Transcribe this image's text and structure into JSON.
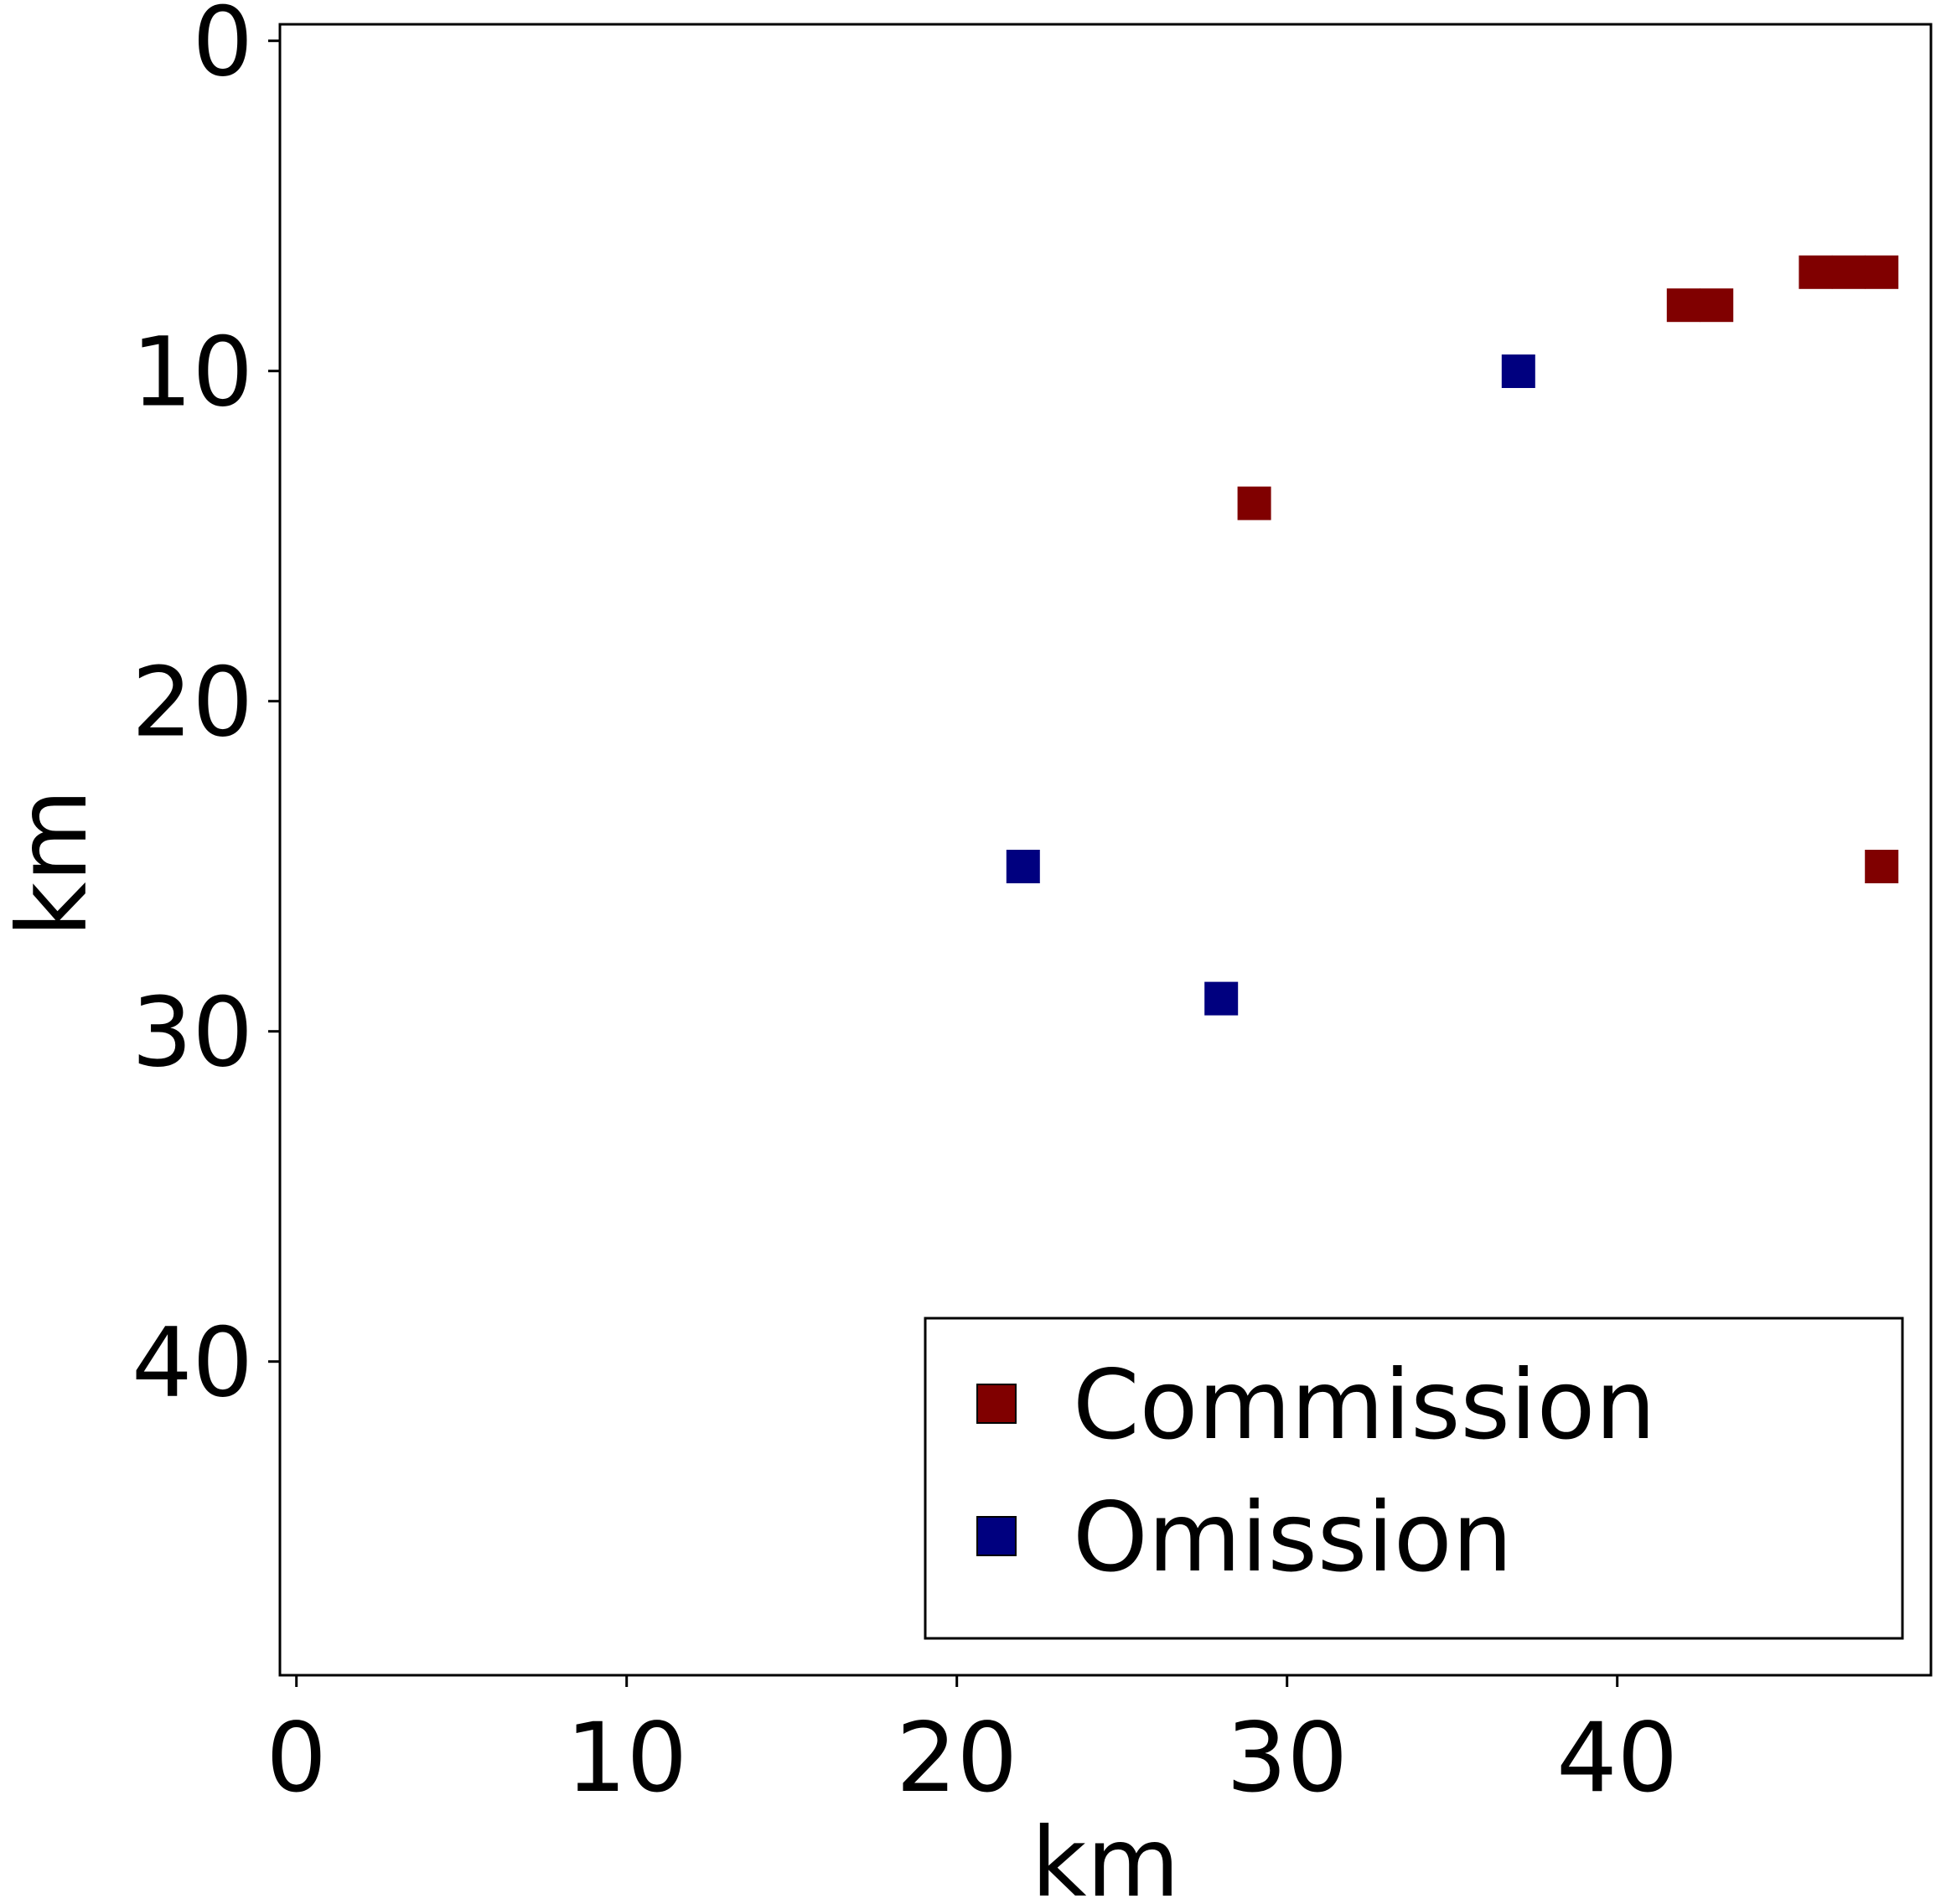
{
  "chart_data": {
    "type": "heatmap",
    "title": "",
    "xlabel": "km",
    "ylabel": "km",
    "xlim": [
      -0.5,
      49.5
    ],
    "ylim": [
      49.5,
      -0.5
    ],
    "y_inverted": true,
    "x_ticks": [
      0,
      10,
      20,
      30,
      40
    ],
    "y_ticks": [
      0,
      10,
      20,
      30,
      40
    ],
    "grid": false,
    "legend": {
      "position": "lower-right"
    },
    "series": [
      {
        "name": "Commission",
        "color": "#800000",
        "cells": [
          {
            "x": 29,
            "y": 14
          },
          {
            "x": 42,
            "y": 8
          },
          {
            "x": 43,
            "y": 8
          },
          {
            "x": 46,
            "y": 7
          },
          {
            "x": 47,
            "y": 7
          },
          {
            "x": 48,
            "y": 7
          },
          {
            "x": 48,
            "y": 25
          }
        ]
      },
      {
        "name": "Omission",
        "color": "#00007f",
        "cells": [
          {
            "x": 37,
            "y": 10
          },
          {
            "x": 22,
            "y": 25
          },
          {
            "x": 28,
            "y": 29
          }
        ]
      }
    ]
  }
}
